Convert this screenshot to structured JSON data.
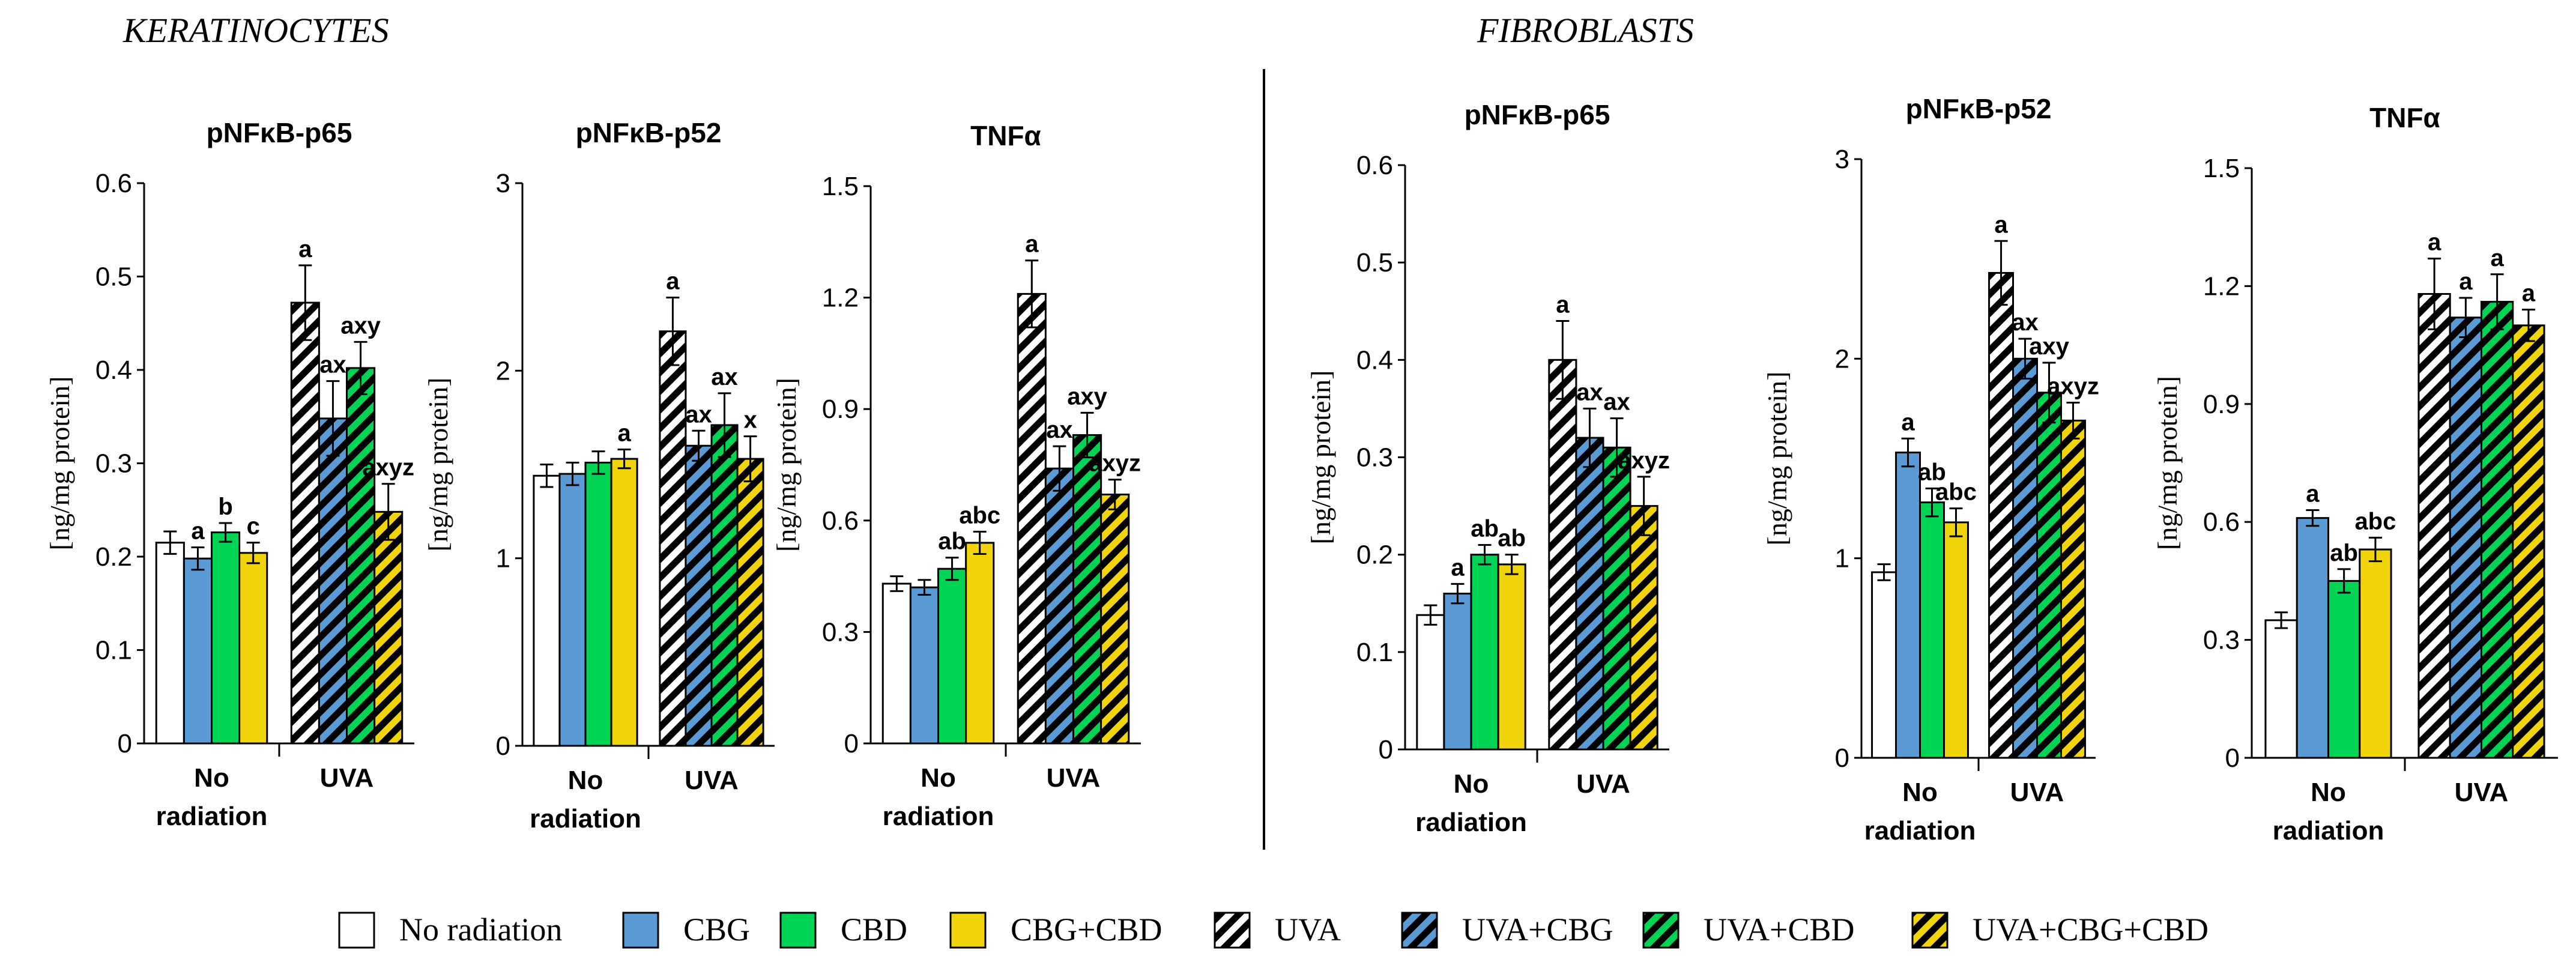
{
  "sections": {
    "keratinocytes": "KERATINOCYTES",
    "fibroblasts": "FIBROBLASTS"
  },
  "legend": [
    {
      "label": "No radiation",
      "color": "#ffffff",
      "hatch": false
    },
    {
      "label": "CBG",
      "color": "#5b9bd5",
      "hatch": false
    },
    {
      "label": "CBD",
      "color": "#00d455",
      "hatch": false
    },
    {
      "label": "CBG+CBD",
      "color": "#f2d40a",
      "hatch": false
    },
    {
      "label": "UVA",
      "color": "#ffffff",
      "hatch": true
    },
    {
      "label": "UVA+CBG",
      "color": "#5b9bd5",
      "hatch": true
    },
    {
      "label": "UVA+CBD",
      "color": "#00d455",
      "hatch": true
    },
    {
      "label": "UVA+CBG+CBD",
      "color": "#f2d40a",
      "hatch": true
    }
  ],
  "chart_data": [
    {
      "type": "bar",
      "section": "KERATINOCYTES",
      "title": "pNFκB-p65",
      "ylabel": "[ng/mg protein]",
      "ylim": [
        0,
        0.6
      ],
      "yticks": [
        "0",
        "0.1",
        "0.2",
        "0.3",
        "0.4",
        "0.5",
        "0.6"
      ],
      "groups": [
        {
          "label": [
            "No",
            "radiation"
          ],
          "values": [
            0.215,
            0.198,
            0.226,
            0.204
          ],
          "errors": [
            0.012,
            0.012,
            0.01,
            0.011
          ],
          "sig": [
            "",
            "a",
            "b",
            "c"
          ]
        },
        {
          "label": [
            "UVA"
          ],
          "values": [
            0.472,
            0.348,
            0.402,
            0.248
          ],
          "errors": [
            0.04,
            0.04,
            0.028,
            0.03
          ],
          "sig": [
            "a",
            "ax",
            "axy",
            "axyz"
          ]
        }
      ]
    },
    {
      "type": "bar",
      "section": "KERATINOCYTES",
      "title": "pNFκB-p52",
      "ylabel": "[ng/mg protein]",
      "ylim": [
        0,
        3
      ],
      "yticks": [
        "0",
        "1",
        "2",
        "3"
      ],
      "groups": [
        {
          "label": [
            "No",
            "radiation"
          ],
          "values": [
            1.44,
            1.45,
            1.51,
            1.53
          ],
          "errors": [
            0.06,
            0.06,
            0.06,
            0.05
          ],
          "sig": [
            "",
            "",
            "",
            "a"
          ]
        },
        {
          "label": [
            "UVA"
          ],
          "values": [
            2.21,
            1.6,
            1.71,
            1.53
          ],
          "errors": [
            0.18,
            0.08,
            0.17,
            0.12
          ],
          "sig": [
            "a",
            "ax",
            "ax",
            "x"
          ]
        }
      ]
    },
    {
      "type": "bar",
      "section": "KERATINOCYTES",
      "title": "TNFα",
      "ylabel": "[ng/mg protein]",
      "ylim": [
        0,
        1.5
      ],
      "yticks": [
        "0",
        "0.3",
        "0.6",
        "0.9",
        "1.2",
        "1.5"
      ],
      "groups": [
        {
          "label": [
            "No",
            "radiation"
          ],
          "values": [
            0.43,
            0.42,
            0.47,
            0.54
          ],
          "errors": [
            0.02,
            0.02,
            0.03,
            0.03
          ],
          "sig": [
            "",
            "",
            "ab",
            "abc"
          ]
        },
        {
          "label": [
            "UVA"
          ],
          "values": [
            1.21,
            0.74,
            0.83,
            0.67
          ],
          "errors": [
            0.09,
            0.06,
            0.06,
            0.04
          ],
          "sig": [
            "a",
            "ax",
            "axy",
            "axyz"
          ]
        }
      ]
    },
    {
      "type": "bar",
      "section": "FIBROBLASTS",
      "title": "pNFκB-p65",
      "ylabel": "[ng/mg protein]",
      "ylim": [
        0,
        0.6
      ],
      "yticks": [
        "0",
        "0.1",
        "0.2",
        "0.3",
        "0.4",
        "0.5",
        "0.6"
      ],
      "groups": [
        {
          "label": [
            "No",
            "radiation"
          ],
          "values": [
            0.138,
            0.16,
            0.2,
            0.19
          ],
          "errors": [
            0.01,
            0.01,
            0.01,
            0.01
          ],
          "sig": [
            "",
            "a",
            "ab",
            "ab"
          ]
        },
        {
          "label": [
            "UVA"
          ],
          "values": [
            0.4,
            0.32,
            0.31,
            0.25
          ],
          "errors": [
            0.04,
            0.03,
            0.03,
            0.03
          ],
          "sig": [
            "a",
            "ax",
            "ax",
            "axyz"
          ]
        }
      ]
    },
    {
      "type": "bar",
      "section": "FIBROBLASTS",
      "title": "pNFκB-p52",
      "ylabel": "[ng/mg protein]",
      "ylim": [
        0,
        3
      ],
      "yticks": [
        "0",
        "1",
        "2",
        "3"
      ],
      "groups": [
        {
          "label": [
            "No",
            "radiation"
          ],
          "values": [
            0.93,
            1.53,
            1.28,
            1.18
          ],
          "errors": [
            0.04,
            0.07,
            0.07,
            0.07
          ],
          "sig": [
            "",
            "a",
            "ab",
            "abc"
          ]
        },
        {
          "label": [
            "UVA"
          ],
          "values": [
            2.43,
            2.0,
            1.83,
            1.69
          ],
          "errors": [
            0.16,
            0.1,
            0.15,
            0.09
          ],
          "sig": [
            "a",
            "ax",
            "axy",
            "axyz"
          ]
        }
      ]
    },
    {
      "type": "bar",
      "section": "FIBROBLASTS",
      "title": "TNFα",
      "ylabel": "[ng/mg protein]",
      "ylim": [
        0,
        1.5
      ],
      "yticks": [
        "0",
        "0.3",
        "0.6",
        "0.9",
        "1.2",
        "1.5"
      ],
      "groups": [
        {
          "label": [
            "No",
            "radiation"
          ],
          "values": [
            0.35,
            0.61,
            0.45,
            0.53
          ],
          "errors": [
            0.02,
            0.02,
            0.03,
            0.03
          ],
          "sig": [
            "",
            "a",
            "ab",
            "abc"
          ]
        },
        {
          "label": [
            "UVA"
          ],
          "values": [
            1.18,
            1.12,
            1.16,
            1.1
          ],
          "errors": [
            0.09,
            0.05,
            0.07,
            0.04
          ],
          "sig": [
            "a",
            "a",
            "a",
            "a"
          ]
        }
      ]
    }
  ]
}
